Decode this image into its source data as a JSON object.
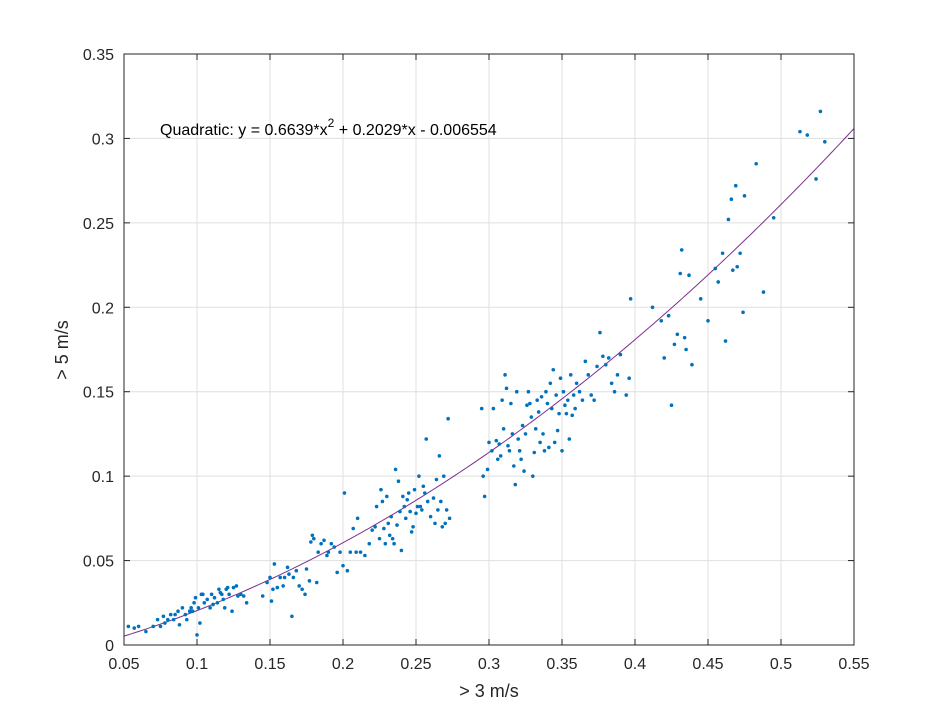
{
  "chart_data": {
    "type": "scatter",
    "xlabel": "> 3 m/s",
    "ylabel": "> 5 m/s",
    "xlim": [
      0.05,
      0.55
    ],
    "ylim": [
      0,
      0.35
    ],
    "xticks": [
      0.05,
      0.1,
      0.15,
      0.2,
      0.25,
      0.3,
      0.35,
      0.4,
      0.45,
      0.5,
      0.55
    ],
    "yticks": [
      0,
      0.05,
      0.1,
      0.15,
      0.2,
      0.25,
      0.3,
      0.35
    ],
    "xtick_labels": [
      "0.05",
      "0.1",
      "0.15",
      "0.2",
      "0.25",
      "0.3",
      "0.35",
      "0.4",
      "0.45",
      "0.5",
      "0.55"
    ],
    "ytick_labels": [
      "0",
      "0.05",
      "0.1",
      "0.15",
      "0.2",
      "0.25",
      "0.3",
      "0.35"
    ],
    "grid": true,
    "annotation": {
      "prefix": "Quadratic:  y = 0.6639*x",
      "superscript": "2",
      "suffix": " + 0.2029*x - 0.006554"
    },
    "fit": {
      "type": "quadratic",
      "a": 0.6639,
      "b": 0.2029,
      "c": -0.006554,
      "color": "#7E2F8E"
    },
    "point_color": "#0072BD",
    "points": [
      [
        0.053,
        0.011
      ],
      [
        0.057,
        0.01
      ],
      [
        0.06,
        0.011
      ],
      [
        0.065,
        0.008
      ],
      [
        0.07,
        0.011
      ],
      [
        0.073,
        0.015
      ],
      [
        0.075,
        0.011
      ],
      [
        0.077,
        0.017
      ],
      [
        0.078,
        0.013
      ],
      [
        0.08,
        0.015
      ],
      [
        0.082,
        0.018
      ],
      [
        0.084,
        0.015
      ],
      [
        0.085,
        0.018
      ],
      [
        0.087,
        0.02
      ],
      [
        0.088,
        0.012
      ],
      [
        0.09,
        0.022
      ],
      [
        0.092,
        0.018
      ],
      [
        0.093,
        0.015
      ],
      [
        0.095,
        0.02
      ],
      [
        0.096,
        0.022
      ],
      [
        0.097,
        0.02
      ],
      [
        0.098,
        0.025
      ],
      [
        0.099,
        0.028
      ],
      [
        0.1,
        0.006
      ],
      [
        0.101,
        0.022
      ],
      [
        0.102,
        0.013
      ],
      [
        0.103,
        0.03
      ],
      [
        0.104,
        0.03
      ],
      [
        0.105,
        0.025
      ],
      [
        0.107,
        0.027
      ],
      [
        0.109,
        0.022
      ],
      [
        0.11,
        0.03
      ],
      [
        0.111,
        0.024
      ],
      [
        0.112,
        0.028
      ],
      [
        0.114,
        0.025
      ],
      [
        0.115,
        0.033
      ],
      [
        0.116,
        0.031
      ],
      [
        0.117,
        0.03
      ],
      [
        0.118,
        0.027
      ],
      [
        0.119,
        0.022
      ],
      [
        0.12,
        0.033
      ],
      [
        0.121,
        0.034
      ],
      [
        0.122,
        0.03
      ],
      [
        0.124,
        0.02
      ],
      [
        0.125,
        0.034
      ],
      [
        0.127,
        0.035
      ],
      [
        0.128,
        0.029
      ],
      [
        0.13,
        0.03
      ],
      [
        0.132,
        0.029
      ],
      [
        0.134,
        0.025
      ],
      [
        0.145,
        0.029
      ],
      [
        0.148,
        0.037
      ],
      [
        0.15,
        0.04
      ],
      [
        0.151,
        0.026
      ],
      [
        0.152,
        0.033
      ],
      [
        0.153,
        0.048
      ],
      [
        0.155,
        0.034
      ],
      [
        0.157,
        0.04
      ],
      [
        0.159,
        0.035
      ],
      [
        0.16,
        0.04
      ],
      [
        0.162,
        0.046
      ],
      [
        0.163,
        0.042
      ],
      [
        0.165,
        0.017
      ],
      [
        0.166,
        0.04
      ],
      [
        0.168,
        0.044
      ],
      [
        0.17,
        0.035
      ],
      [
        0.172,
        0.033
      ],
      [
        0.174,
        0.03
      ],
      [
        0.175,
        0.045
      ],
      [
        0.177,
        0.038
      ],
      [
        0.178,
        0.061
      ],
      [
        0.179,
        0.065
      ],
      [
        0.18,
        0.063
      ],
      [
        0.182,
        0.037
      ],
      [
        0.183,
        0.055
      ],
      [
        0.185,
        0.06
      ],
      [
        0.187,
        0.062
      ],
      [
        0.189,
        0.053
      ],
      [
        0.19,
        0.055
      ],
      [
        0.192,
        0.06
      ],
      [
        0.194,
        0.058
      ],
      [
        0.196,
        0.043
      ],
      [
        0.198,
        0.055
      ],
      [
        0.2,
        0.047
      ],
      [
        0.201,
        0.09
      ],
      [
        0.203,
        0.044
      ],
      [
        0.205,
        0.055
      ],
      [
        0.207,
        0.069
      ],
      [
        0.209,
        0.055
      ],
      [
        0.21,
        0.075
      ],
      [
        0.212,
        0.055
      ],
      [
        0.215,
        0.053
      ],
      [
        0.218,
        0.06
      ],
      [
        0.22,
        0.068
      ],
      [
        0.222,
        0.07
      ],
      [
        0.223,
        0.082
      ],
      [
        0.225,
        0.063
      ],
      [
        0.226,
        0.092
      ],
      [
        0.227,
        0.085
      ],
      [
        0.228,
        0.069
      ],
      [
        0.229,
        0.06
      ],
      [
        0.23,
        0.088
      ],
      [
        0.231,
        0.072
      ],
      [
        0.232,
        0.065
      ],
      [
        0.233,
        0.076
      ],
      [
        0.234,
        0.063
      ],
      [
        0.235,
        0.06
      ],
      [
        0.236,
        0.104
      ],
      [
        0.237,
        0.071
      ],
      [
        0.238,
        0.097
      ],
      [
        0.239,
        0.079
      ],
      [
        0.24,
        0.056
      ],
      [
        0.241,
        0.088
      ],
      [
        0.242,
        0.082
      ],
      [
        0.243,
        0.075
      ],
      [
        0.244,
        0.086
      ],
      [
        0.245,
        0.09
      ],
      [
        0.246,
        0.079
      ],
      [
        0.247,
        0.067
      ],
      [
        0.248,
        0.07
      ],
      [
        0.249,
        0.092
      ],
      [
        0.25,
        0.078
      ],
      [
        0.251,
        0.082
      ],
      [
        0.252,
        0.1
      ],
      [
        0.253,
        0.082
      ],
      [
        0.254,
        0.08
      ],
      [
        0.255,
        0.094
      ],
      [
        0.256,
        0.09
      ],
      [
        0.257,
        0.122
      ],
      [
        0.258,
        0.085
      ],
      [
        0.26,
        0.076
      ],
      [
        0.262,
        0.087
      ],
      [
        0.263,
        0.072
      ],
      [
        0.264,
        0.098
      ],
      [
        0.265,
        0.08
      ],
      [
        0.266,
        0.112
      ],
      [
        0.267,
        0.085
      ],
      [
        0.268,
        0.07
      ],
      [
        0.269,
        0.1
      ],
      [
        0.27,
        0.072
      ],
      [
        0.271,
        0.08
      ],
      [
        0.272,
        0.134
      ],
      [
        0.273,
        0.075
      ],
      [
        0.295,
        0.14
      ],
      [
        0.296,
        0.1
      ],
      [
        0.297,
        0.088
      ],
      [
        0.299,
        0.104
      ],
      [
        0.3,
        0.12
      ],
      [
        0.302,
        0.115
      ],
      [
        0.303,
        0.14
      ],
      [
        0.305,
        0.121
      ],
      [
        0.306,
        0.11
      ],
      [
        0.307,
        0.119
      ],
      [
        0.308,
        0.112
      ],
      [
        0.309,
        0.145
      ],
      [
        0.31,
        0.128
      ],
      [
        0.311,
        0.16
      ],
      [
        0.312,
        0.152
      ],
      [
        0.313,
        0.118
      ],
      [
        0.314,
        0.115
      ],
      [
        0.315,
        0.143
      ],
      [
        0.316,
        0.125
      ],
      [
        0.317,
        0.106
      ],
      [
        0.318,
        0.095
      ],
      [
        0.319,
        0.15
      ],
      [
        0.32,
        0.122
      ],
      [
        0.321,
        0.115
      ],
      [
        0.322,
        0.11
      ],
      [
        0.323,
        0.13
      ],
      [
        0.324,
        0.103
      ],
      [
        0.325,
        0.125
      ],
      [
        0.326,
        0.142
      ],
      [
        0.327,
        0.15
      ],
      [
        0.328,
        0.143
      ],
      [
        0.329,
        0.135
      ],
      [
        0.33,
        0.1
      ],
      [
        0.331,
        0.114
      ],
      [
        0.332,
        0.128
      ],
      [
        0.333,
        0.145
      ],
      [
        0.334,
        0.138
      ],
      [
        0.335,
        0.12
      ],
      [
        0.336,
        0.147
      ],
      [
        0.337,
        0.125
      ],
      [
        0.338,
        0.115
      ],
      [
        0.339,
        0.15
      ],
      [
        0.34,
        0.143
      ],
      [
        0.341,
        0.117
      ],
      [
        0.342,
        0.155
      ],
      [
        0.343,
        0.14
      ],
      [
        0.344,
        0.163
      ],
      [
        0.345,
        0.12
      ],
      [
        0.346,
        0.148
      ],
      [
        0.347,
        0.127
      ],
      [
        0.348,
        0.137
      ],
      [
        0.349,
        0.158
      ],
      [
        0.35,
        0.115
      ],
      [
        0.351,
        0.15
      ],
      [
        0.352,
        0.142
      ],
      [
        0.353,
        0.137
      ],
      [
        0.354,
        0.145
      ],
      [
        0.355,
        0.122
      ],
      [
        0.356,
        0.16
      ],
      [
        0.357,
        0.136
      ],
      [
        0.358,
        0.148
      ],
      [
        0.359,
        0.14
      ],
      [
        0.36,
        0.155
      ],
      [
        0.362,
        0.15
      ],
      [
        0.364,
        0.145
      ],
      [
        0.366,
        0.168
      ],
      [
        0.368,
        0.16
      ],
      [
        0.37,
        0.148
      ],
      [
        0.372,
        0.145
      ],
      [
        0.374,
        0.165
      ],
      [
        0.376,
        0.185
      ],
      [
        0.378,
        0.171
      ],
      [
        0.38,
        0.166
      ],
      [
        0.382,
        0.17
      ],
      [
        0.384,
        0.155
      ],
      [
        0.386,
        0.15
      ],
      [
        0.388,
        0.16
      ],
      [
        0.39,
        0.172
      ],
      [
        0.394,
        0.148
      ],
      [
        0.396,
        0.158
      ],
      [
        0.397,
        0.205
      ],
      [
        0.412,
        0.2
      ],
      [
        0.418,
        0.192
      ],
      [
        0.42,
        0.17
      ],
      [
        0.423,
        0.195
      ],
      [
        0.425,
        0.142
      ],
      [
        0.427,
        0.178
      ],
      [
        0.429,
        0.184
      ],
      [
        0.431,
        0.22
      ],
      [
        0.432,
        0.234
      ],
      [
        0.434,
        0.182
      ],
      [
        0.435,
        0.175
      ],
      [
        0.437,
        0.219
      ],
      [
        0.439,
        0.166
      ],
      [
        0.445,
        0.205
      ],
      [
        0.45,
        0.192
      ],
      [
        0.455,
        0.223
      ],
      [
        0.457,
        0.215
      ],
      [
        0.46,
        0.232
      ],
      [
        0.462,
        0.18
      ],
      [
        0.464,
        0.252
      ],
      [
        0.466,
        0.264
      ],
      [
        0.467,
        0.222
      ],
      [
        0.469,
        0.272
      ],
      [
        0.47,
        0.224
      ],
      [
        0.472,
        0.232
      ],
      [
        0.474,
        0.197
      ],
      [
        0.475,
        0.266
      ],
      [
        0.483,
        0.285
      ],
      [
        0.488,
        0.209
      ],
      [
        0.495,
        0.253
      ],
      [
        0.513,
        0.304
      ],
      [
        0.518,
        0.302
      ],
      [
        0.524,
        0.276
      ],
      [
        0.527,
        0.316
      ],
      [
        0.53,
        0.298
      ]
    ]
  }
}
